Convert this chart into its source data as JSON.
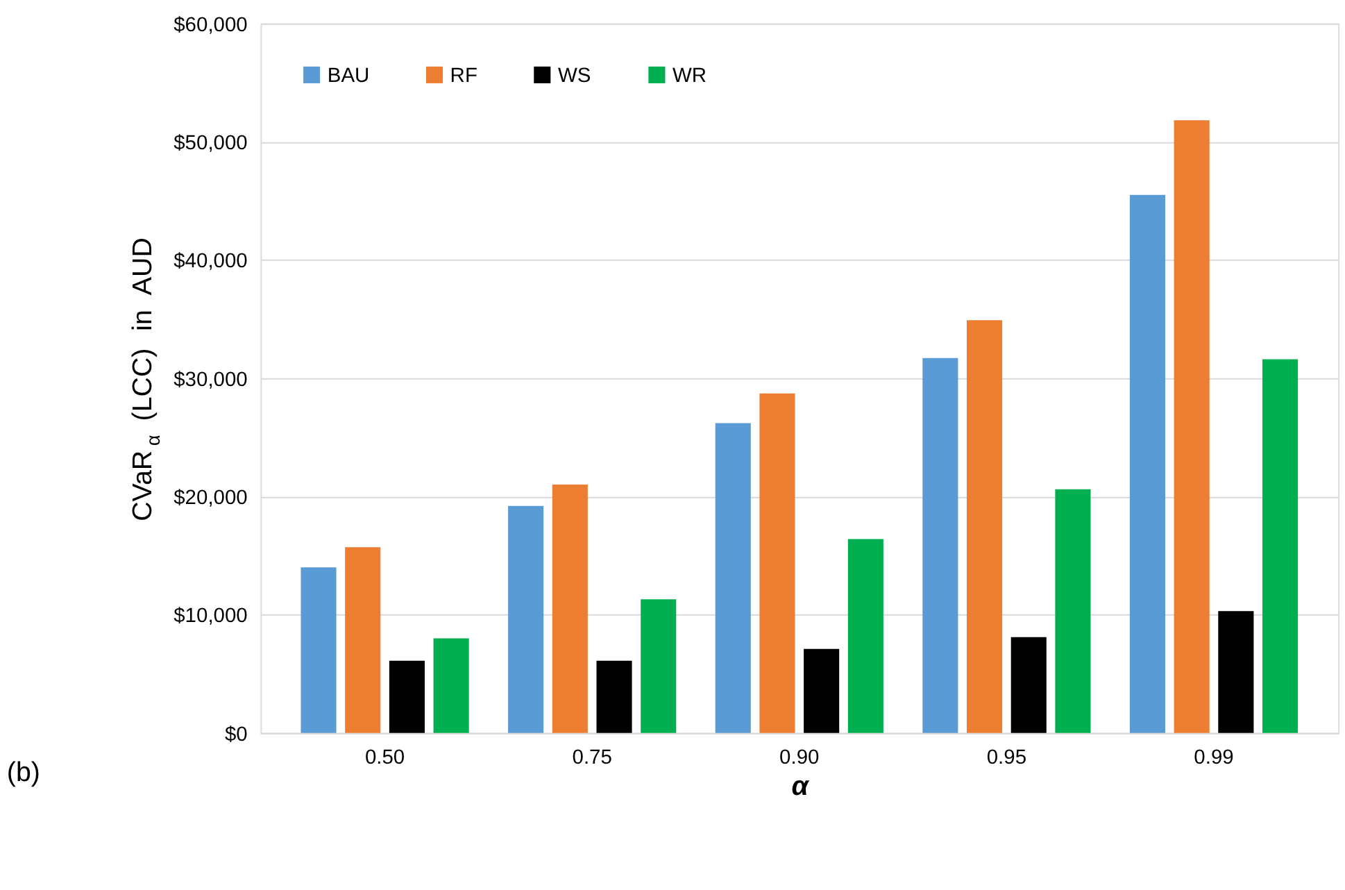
{
  "chart_data": {
    "type": "bar",
    "categories": [
      "0.50",
      "0.75",
      "0.90",
      "0.95",
      "0.99"
    ],
    "series": [
      {
        "name": "BAU",
        "color": "#5b9bd5",
        "values": [
          14000,
          19200,
          26200,
          31700,
          45500
        ]
      },
      {
        "name": "RF",
        "color": "#ed7d31",
        "values": [
          15700,
          21000,
          28700,
          34900,
          51800
        ]
      },
      {
        "name": "WS",
        "color": "#000000",
        "values": [
          6100,
          6100,
          7100,
          8100,
          10300
        ]
      },
      {
        "name": "WR",
        "color": "#00b050",
        "values": [
          8000,
          11300,
          16400,
          20600,
          31600
        ]
      }
    ],
    "ylabel": "CVaR$_{α}$ (LCC) in AUD",
    "xlabel": "α",
    "annotations": [
      "(b)"
    ],
    "ylim": [
      0,
      60000
    ],
    "yticks": [
      {
        "value": 0,
        "label": "$0"
      },
      {
        "value": 10000,
        "label": "$10,000"
      },
      {
        "value": 20000,
        "label": "$20,000"
      },
      {
        "value": 30000,
        "label": "$30,000"
      },
      {
        "value": 40000,
        "label": "$40,000"
      },
      {
        "value": 50000,
        "label": "$50,000"
      },
      {
        "value": 60000,
        "label": "$60,000"
      }
    ],
    "grid": "y",
    "legend": "top left"
  }
}
